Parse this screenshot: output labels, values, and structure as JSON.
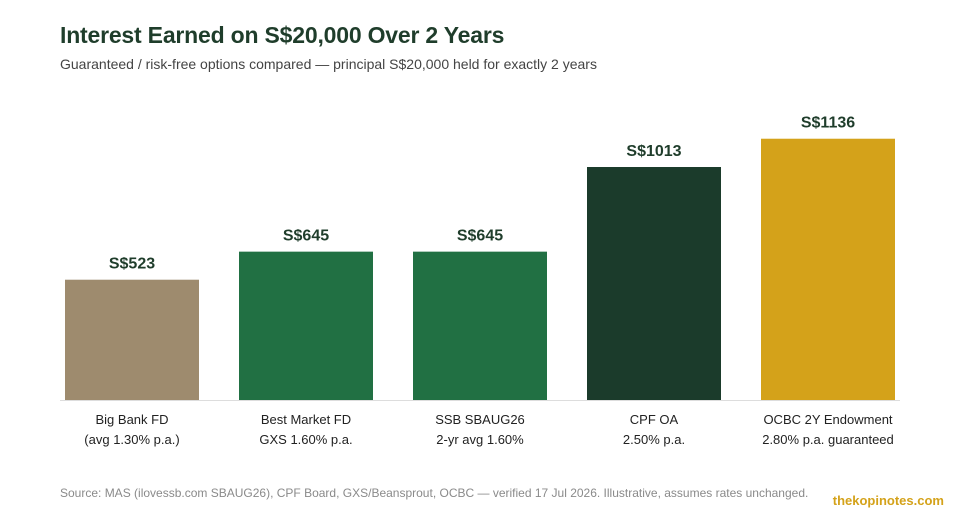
{
  "title": "Interest Earned on S$20,000 Over 2 Years",
  "subtitle": "Guaranteed / risk-free options compared — principal S$20,000 held for exactly 2 years",
  "source": "Source: MAS (ilovessb.com SBAUG26), CPF Board, GXS/Beansprout, OCBC — verified 17 Jul 2026. Illustrative, assumes rates unchanged.",
  "brand": "thekopinotes.com",
  "chart_data": {
    "type": "bar",
    "title": "Interest Earned on S$20,000 Over 2 Years",
    "xlabel": "",
    "ylabel": "",
    "ylim": [
      0,
      1200
    ],
    "grid": false,
    "legend": "none",
    "value_prefix": "S$",
    "categories": [
      [
        "Big Bank FD",
        "(avg 1.30% p.a.)"
      ],
      [
        "Best Market FD",
        "GXS 1.60% p.a."
      ],
      [
        "SSB SBAUG26",
        "2-yr avg 1.60%"
      ],
      [
        "CPF OA",
        "2.50% p.a."
      ],
      [
        "OCBC 2Y Endowment",
        "2.80% p.a. guaranteed"
      ]
    ],
    "values": [
      523,
      645,
      645,
      1013,
      1136
    ],
    "data_labels": [
      "S$523",
      "S$645",
      "S$645",
      "S$1013",
      "S$1136"
    ],
    "colors": [
      "#9e8b6e",
      "#217043",
      "#217043",
      "#1b3b2b",
      "#d4a21a"
    ]
  }
}
